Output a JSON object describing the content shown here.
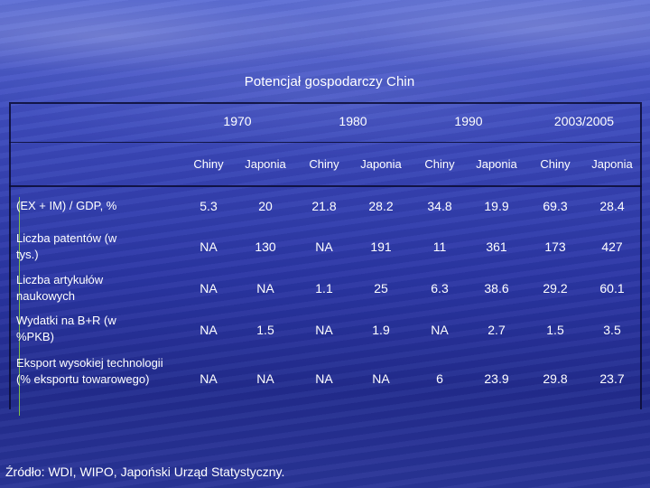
{
  "title": "Potencjał gospodarczy Chin",
  "years": [
    "1970",
    "1980",
    "1990",
    "2003/2005"
  ],
  "countries": [
    "Chiny",
    "Japonia",
    "Chiny",
    "Japonia",
    "Chiny",
    "Japonia",
    "Chiny",
    "Japonia"
  ],
  "rows": [
    {
      "label": "(EX + IM) / GDP, %",
      "values": [
        "5.3",
        "20",
        "21.8",
        "28.2",
        "34.8",
        "19.9",
        "69.3",
        "28.4"
      ]
    },
    {
      "label": "Liczba patentów (w tys.)",
      "values": [
        "NA",
        "130",
        "NA",
        "191",
        "11",
        "361",
        "173",
        "427"
      ]
    },
    {
      "label": "Liczba artykułów naukowych",
      "values": [
        "NA",
        "NA",
        "1.1",
        "25",
        "6.3",
        "38.6",
        "29.2",
        "60.1"
      ]
    },
    {
      "label": "Wydatki na B+R (w %PKB)",
      "values": [
        "NA",
        "1.5",
        "NA",
        "1.9",
        "NA",
        "2.7",
        "1.5",
        "3.5"
      ]
    },
    {
      "label": "Eksport wysokiej technologii (% eksportu towarowego)",
      "values": [
        "NA",
        "NA",
        "NA",
        "NA",
        "6",
        "23.9",
        "29.8",
        "23.7"
      ]
    }
  ],
  "source": "Źródło: WDI, WIPO, Japoński Urząd Statystyczny."
}
